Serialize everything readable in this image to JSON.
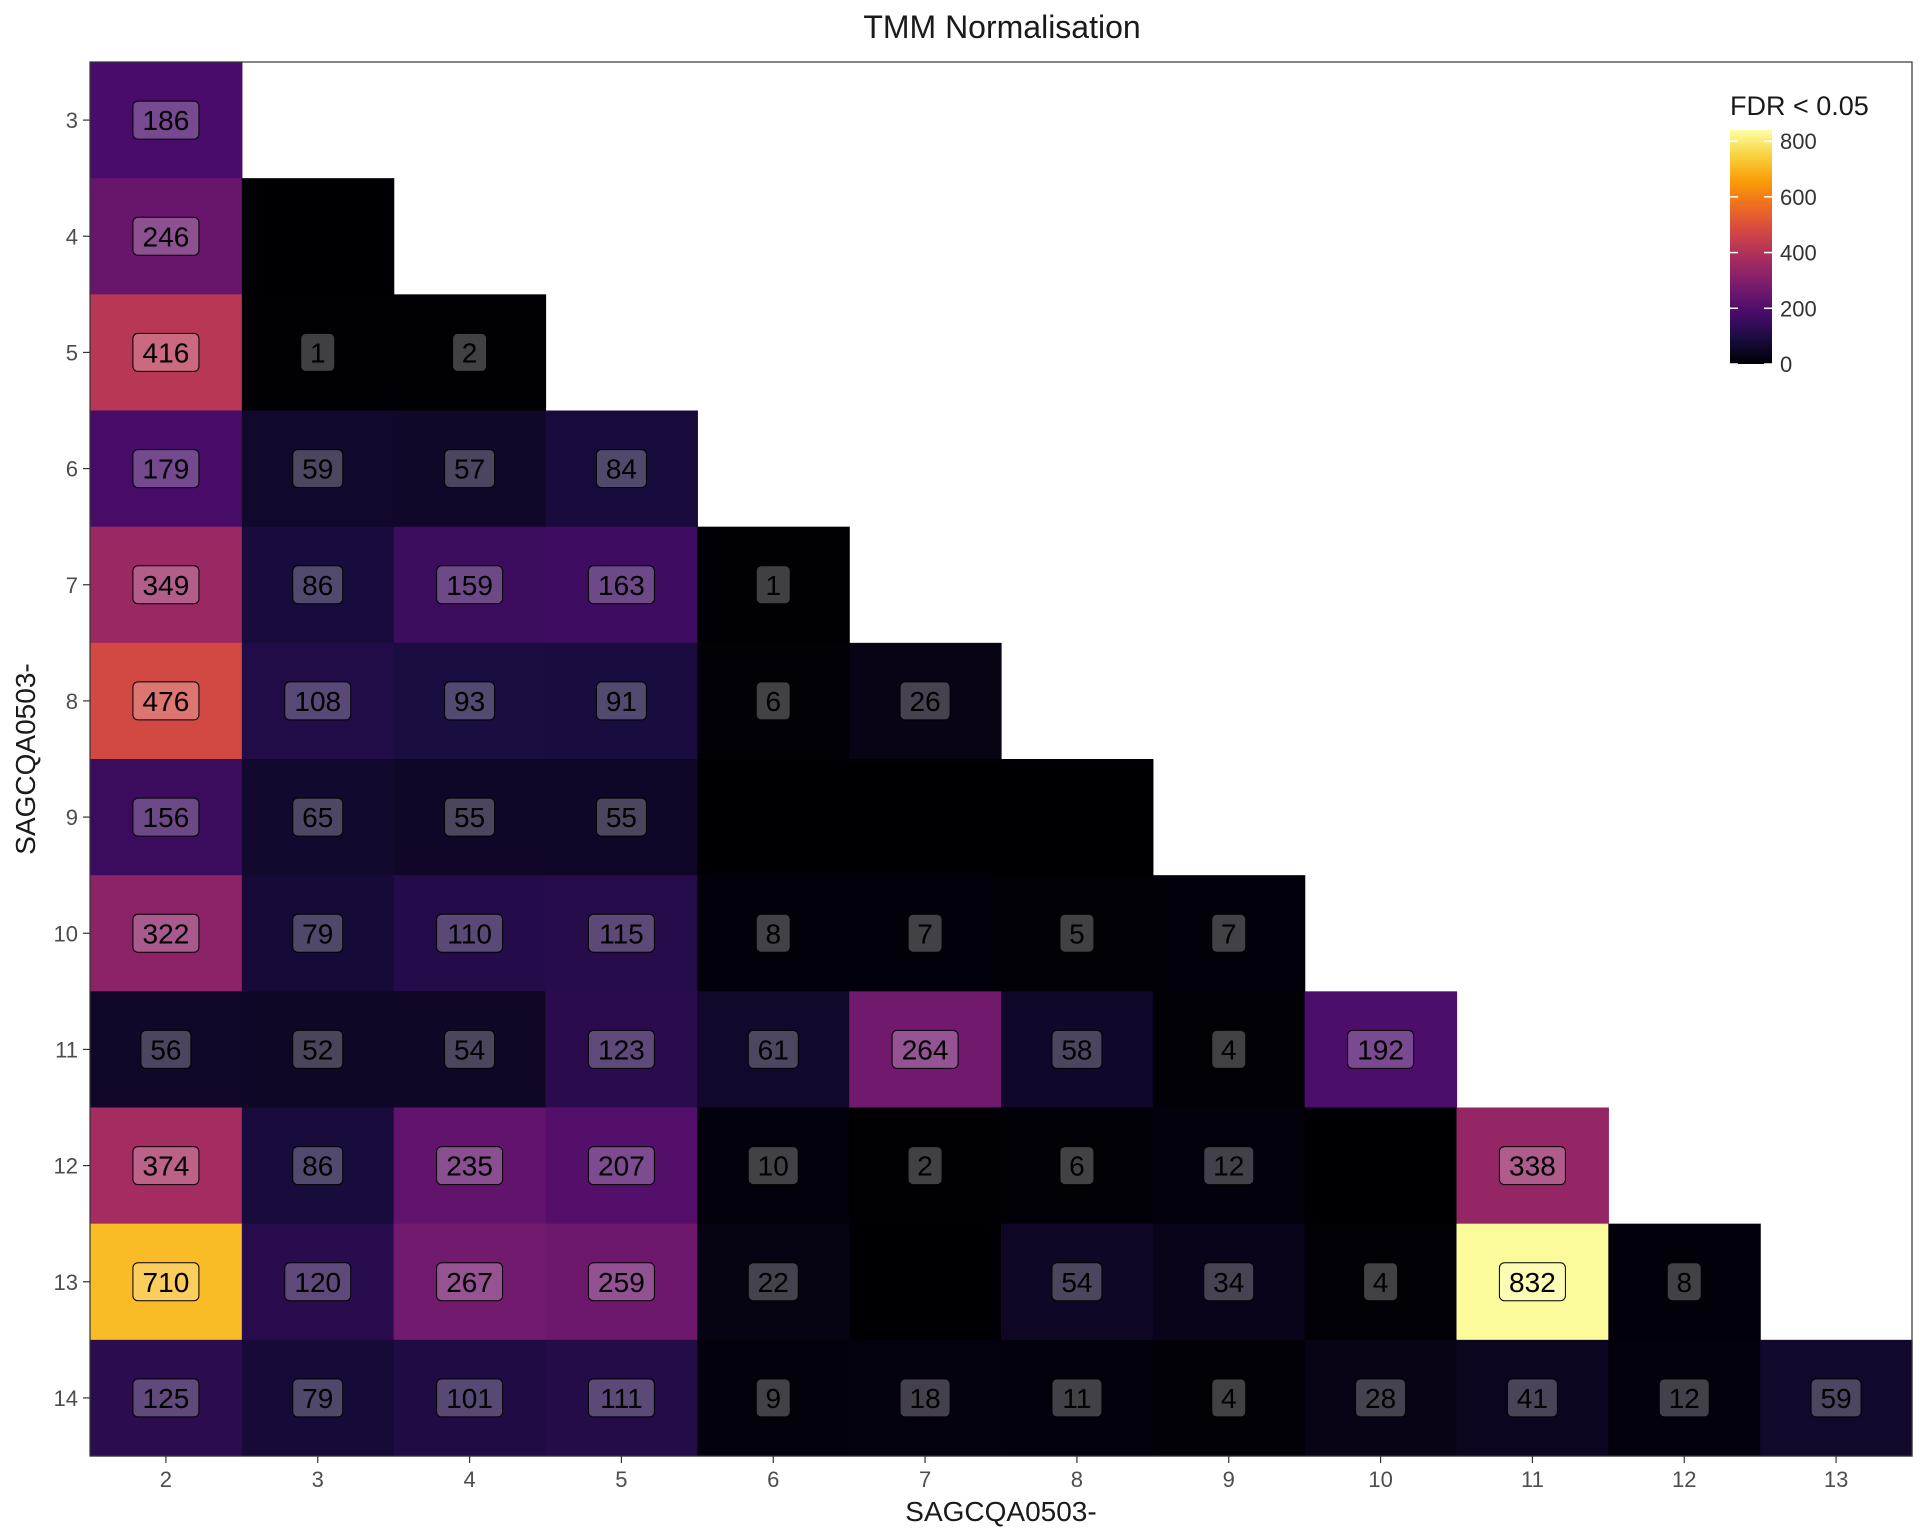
{
  "chart_data": {
    "type": "heatmap",
    "title": "TMM Normalisation",
    "xlabel": "SAGCQA0503-",
    "ylabel": "SAGCQA0503-",
    "x_categories": [
      "2",
      "3",
      "4",
      "5",
      "6",
      "7",
      "8",
      "9",
      "10",
      "11",
      "12",
      "13"
    ],
    "y_categories": [
      "3",
      "4",
      "5",
      "6",
      "7",
      "8",
      "9",
      "10",
      "11",
      "12",
      "13",
      "14"
    ],
    "cells": [
      {
        "x": "2",
        "y": "3",
        "value": 186,
        "label": "186"
      },
      {
        "x": "2",
        "y": "4",
        "value": 246,
        "label": "246"
      },
      {
        "x": "3",
        "y": "4",
        "value": 0,
        "label": ""
      },
      {
        "x": "2",
        "y": "5",
        "value": 416,
        "label": "416"
      },
      {
        "x": "3",
        "y": "5",
        "value": 1,
        "label": "1"
      },
      {
        "x": "4",
        "y": "5",
        "value": 2,
        "label": "2"
      },
      {
        "x": "2",
        "y": "6",
        "value": 179,
        "label": "179"
      },
      {
        "x": "3",
        "y": "6",
        "value": 59,
        "label": "59"
      },
      {
        "x": "4",
        "y": "6",
        "value": 57,
        "label": "57"
      },
      {
        "x": "5",
        "y": "6",
        "value": 84,
        "label": "84"
      },
      {
        "x": "2",
        "y": "7",
        "value": 349,
        "label": "349"
      },
      {
        "x": "3",
        "y": "7",
        "value": 86,
        "label": "86"
      },
      {
        "x": "4",
        "y": "7",
        "value": 159,
        "label": "159"
      },
      {
        "x": "5",
        "y": "7",
        "value": 163,
        "label": "163"
      },
      {
        "x": "6",
        "y": "7",
        "value": 1,
        "label": "1"
      },
      {
        "x": "2",
        "y": "8",
        "value": 476,
        "label": "476"
      },
      {
        "x": "3",
        "y": "8",
        "value": 108,
        "label": "108"
      },
      {
        "x": "4",
        "y": "8",
        "value": 93,
        "label": "93"
      },
      {
        "x": "5",
        "y": "8",
        "value": 91,
        "label": "91"
      },
      {
        "x": "6",
        "y": "8",
        "value": 6,
        "label": "6"
      },
      {
        "x": "7",
        "y": "8",
        "value": 26,
        "label": "26"
      },
      {
        "x": "2",
        "y": "9",
        "value": 156,
        "label": "156"
      },
      {
        "x": "3",
        "y": "9",
        "value": 65,
        "label": "65"
      },
      {
        "x": "4",
        "y": "9",
        "value": 55,
        "label": "55"
      },
      {
        "x": "5",
        "y": "9",
        "value": 55,
        "label": "55"
      },
      {
        "x": "6",
        "y": "9",
        "value": 0,
        "label": ""
      },
      {
        "x": "7",
        "y": "9",
        "value": 0,
        "label": ""
      },
      {
        "x": "8",
        "y": "9",
        "value": 0,
        "label": ""
      },
      {
        "x": "2",
        "y": "10",
        "value": 322,
        "label": "322"
      },
      {
        "x": "3",
        "y": "10",
        "value": 79,
        "label": "79"
      },
      {
        "x": "4",
        "y": "10",
        "value": 110,
        "label": "110"
      },
      {
        "x": "5",
        "y": "10",
        "value": 115,
        "label": "115"
      },
      {
        "x": "6",
        "y": "10",
        "value": 8,
        "label": "8"
      },
      {
        "x": "7",
        "y": "10",
        "value": 7,
        "label": "7"
      },
      {
        "x": "8",
        "y": "10",
        "value": 5,
        "label": "5"
      },
      {
        "x": "9",
        "y": "10",
        "value": 7,
        "label": "7"
      },
      {
        "x": "2",
        "y": "11",
        "value": 56,
        "label": "56"
      },
      {
        "x": "3",
        "y": "11",
        "value": 52,
        "label": "52"
      },
      {
        "x": "4",
        "y": "11",
        "value": 54,
        "label": "54"
      },
      {
        "x": "5",
        "y": "11",
        "value": 123,
        "label": "123"
      },
      {
        "x": "6",
        "y": "11",
        "value": 61,
        "label": "61"
      },
      {
        "x": "7",
        "y": "11",
        "value": 264,
        "label": "264"
      },
      {
        "x": "8",
        "y": "11",
        "value": 58,
        "label": "58"
      },
      {
        "x": "9",
        "y": "11",
        "value": 4,
        "label": "4"
      },
      {
        "x": "10",
        "y": "11",
        "value": 192,
        "label": "192"
      },
      {
        "x": "2",
        "y": "12",
        "value": 374,
        "label": "374"
      },
      {
        "x": "3",
        "y": "12",
        "value": 86,
        "label": "86"
      },
      {
        "x": "4",
        "y": "12",
        "value": 235,
        "label": "235"
      },
      {
        "x": "5",
        "y": "12",
        "value": 207,
        "label": "207"
      },
      {
        "x": "6",
        "y": "12",
        "value": 10,
        "label": "10"
      },
      {
        "x": "7",
        "y": "12",
        "value": 2,
        "label": "2"
      },
      {
        "x": "8",
        "y": "12",
        "value": 6,
        "label": "6"
      },
      {
        "x": "9",
        "y": "12",
        "value": 12,
        "label": "12"
      },
      {
        "x": "10",
        "y": "12",
        "value": 0,
        "label": ""
      },
      {
        "x": "11",
        "y": "12",
        "value": 338,
        "label": "338"
      },
      {
        "x": "2",
        "y": "13",
        "value": 710,
        "label": "710"
      },
      {
        "x": "3",
        "y": "13",
        "value": 120,
        "label": "120"
      },
      {
        "x": "4",
        "y": "13",
        "value": 267,
        "label": "267"
      },
      {
        "x": "5",
        "y": "13",
        "value": 259,
        "label": "259"
      },
      {
        "x": "6",
        "y": "13",
        "value": 22,
        "label": "22"
      },
      {
        "x": "7",
        "y": "13",
        "value": 0,
        "label": ""
      },
      {
        "x": "8",
        "y": "13",
        "value": 54,
        "label": "54"
      },
      {
        "x": "9",
        "y": "13",
        "value": 34,
        "label": "34"
      },
      {
        "x": "10",
        "y": "13",
        "value": 4,
        "label": "4"
      },
      {
        "x": "11",
        "y": "13",
        "value": 832,
        "label": "832"
      },
      {
        "x": "12",
        "y": "13",
        "value": 8,
        "label": "8"
      },
      {
        "x": "2",
        "y": "14",
        "value": 125,
        "label": "125"
      },
      {
        "x": "3",
        "y": "14",
        "value": 79,
        "label": "79"
      },
      {
        "x": "4",
        "y": "14",
        "value": 101,
        "label": "101"
      },
      {
        "x": "5",
        "y": "14",
        "value": 111,
        "label": "111"
      },
      {
        "x": "6",
        "y": "14",
        "value": 9,
        "label": "9"
      },
      {
        "x": "7",
        "y": "14",
        "value": 18,
        "label": "18"
      },
      {
        "x": "8",
        "y": "14",
        "value": 11,
        "label": "11"
      },
      {
        "x": "9",
        "y": "14",
        "value": 4,
        "label": "4"
      },
      {
        "x": "10",
        "y": "14",
        "value": 28,
        "label": "28"
      },
      {
        "x": "11",
        "y": "14",
        "value": 41,
        "label": "41"
      },
      {
        "x": "12",
        "y": "14",
        "value": 12,
        "label": "12"
      },
      {
        "x": "13",
        "y": "14",
        "value": 59,
        "label": "59"
      }
    ],
    "legend": {
      "title": "FDR < 0.05",
      "position": "top-right",
      "min": 0,
      "max": 840,
      "ticks": [
        0,
        200,
        400,
        600,
        800
      ]
    },
    "colorscale": "inferno",
    "colorscale_stops": [
      "#000004",
      "#1b0c41",
      "#4a0c6b",
      "#781c6d",
      "#a52c60",
      "#cf4446",
      "#ed6925",
      "#fb9b06",
      "#f7d13d",
      "#fcffa4"
    ],
    "grid": false
  }
}
